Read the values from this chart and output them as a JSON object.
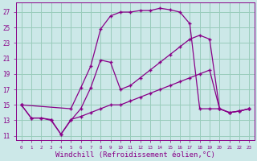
{
  "background_color": "#cce8e8",
  "line_color": "#880088",
  "grid_color": "#99ccbb",
  "xlabel": "Windchill (Refroidissement éolien,°C)",
  "xlabel_fontsize": 6.5,
  "ylabel_ticks": [
    11,
    13,
    15,
    17,
    19,
    21,
    23,
    25,
    27
  ],
  "xlim": [
    -0.5,
    23.5
  ],
  "ylim": [
    10.5,
    28.2
  ],
  "curve1_x": [
    0,
    1,
    2,
    3,
    4,
    5,
    6,
    7,
    8,
    9,
    10,
    11,
    12,
    13,
    14,
    15,
    16,
    17,
    18,
    19,
    20,
    21,
    22,
    23
  ],
  "curve1_y": [
    15.0,
    13.3,
    13.3,
    13.1,
    11.2,
    13.1,
    13.5,
    14.0,
    14.5,
    15.0,
    15.0,
    15.5,
    16.0,
    16.5,
    17.0,
    17.5,
    18.0,
    18.5,
    19.0,
    19.5,
    14.5,
    14.0,
    14.2,
    14.5
  ],
  "curve2_x": [
    0,
    1,
    2,
    3,
    4,
    5,
    6,
    7,
    8,
    9,
    10,
    11,
    12,
    13,
    14,
    15,
    16,
    17,
    18,
    19,
    20,
    21,
    22,
    23
  ],
  "curve2_y": [
    15.0,
    13.3,
    13.3,
    13.0,
    11.2,
    13.0,
    14.5,
    17.2,
    20.8,
    20.5,
    17.0,
    17.5,
    18.5,
    19.5,
    20.5,
    21.5,
    22.5,
    23.5,
    24.0,
    23.5,
    14.5,
    14.0,
    14.2,
    14.5
  ],
  "curve3_x": [
    0,
    5,
    6,
    7,
    8,
    9,
    10,
    11,
    12,
    13,
    14,
    15,
    16,
    17,
    18,
    19,
    20,
    21,
    22,
    23
  ],
  "curve3_y": [
    15.0,
    14.5,
    17.2,
    20.0,
    24.8,
    26.5,
    27.0,
    27.0,
    27.2,
    27.2,
    27.5,
    27.3,
    27.0,
    25.5,
    14.5,
    14.5,
    14.5,
    14.0,
    14.2,
    14.5
  ]
}
